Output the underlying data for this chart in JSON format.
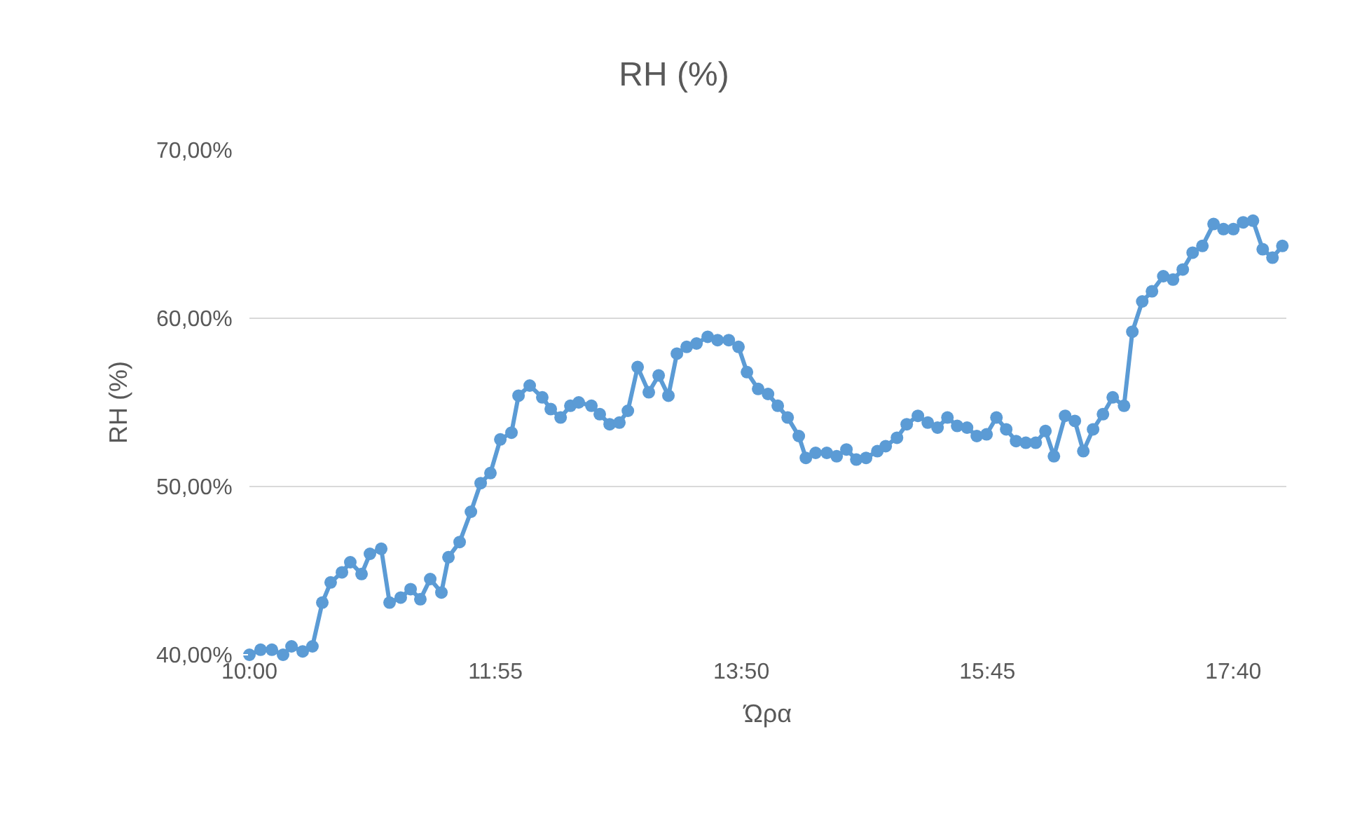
{
  "chart_data": {
    "type": "line",
    "title": "RH (%)",
    "xlabel": "Ώρα",
    "ylabel": "RH (%)",
    "x": [
      10.0,
      10.087,
      10.175,
      10.262,
      10.328,
      10.415,
      10.491,
      10.568,
      10.633,
      10.721,
      10.786,
      10.874,
      10.939,
      11.027,
      11.092,
      11.179,
      11.256,
      11.332,
      11.409,
      11.496,
      11.551,
      11.638,
      11.726,
      11.802,
      11.878,
      11.955,
      12.042,
      12.097,
      12.184,
      12.282,
      12.348,
      12.425,
      12.501,
      12.566,
      12.665,
      12.73,
      12.807,
      12.883,
      12.949,
      13.025,
      13.112,
      13.189,
      13.265,
      13.331,
      13.407,
      13.484,
      13.571,
      13.648,
      13.735,
      13.811,
      13.877,
      13.964,
      14.041,
      14.117,
      14.194,
      14.281,
      14.336,
      14.412,
      14.499,
      14.576,
      14.652,
      14.729,
      14.805,
      14.893,
      14.958,
      15.046,
      15.122,
      15.209,
      15.286,
      15.362,
      15.439,
      15.515,
      15.592,
      15.668,
      15.744,
      15.821,
      15.897,
      15.974,
      16.05,
      16.127,
      16.203,
      16.269,
      16.356,
      16.432,
      16.498,
      16.574,
      16.651,
      16.727,
      16.815,
      16.88,
      16.957,
      17.033,
      17.121,
      17.197,
      17.273,
      17.35,
      17.426,
      17.513,
      17.59,
      17.667,
      17.743,
      17.82,
      17.896,
      17.972,
      18.049
    ],
    "series": [
      {
        "color": "#5b9bd5",
        "values": [
          40.0,
          40.3,
          40.3,
          40.0,
          40.5,
          40.2,
          40.5,
          43.1,
          44.3,
          44.9,
          45.5,
          44.8,
          46.0,
          46.3,
          43.1,
          43.4,
          43.9,
          43.3,
          44.5,
          43.7,
          45.8,
          46.7,
          48.5,
          50.2,
          50.8,
          52.8,
          53.2,
          55.4,
          56.0,
          55.3,
          54.6,
          54.1,
          54.8,
          55.0,
          54.8,
          54.3,
          53.7,
          53.8,
          54.5,
          57.1,
          55.6,
          56.6,
          55.4,
          57.9,
          58.3,
          58.5,
          58.9,
          58.7,
          58.7,
          58.3,
          56.8,
          55.8,
          55.5,
          54.8,
          54.1,
          53.0,
          51.7,
          52.0,
          52.0,
          51.8,
          52.2,
          51.6,
          51.7,
          52.1,
          52.4,
          52.9,
          53.7,
          54.2,
          53.8,
          53.5,
          54.1,
          53.6,
          53.5,
          53.0,
          53.1,
          54.1,
          53.4,
          52.7,
          52.6,
          52.6,
          53.3,
          51.8,
          54.2,
          53.9,
          52.1,
          53.4,
          54.3,
          55.3,
          54.8,
          59.2,
          61.0,
          61.6,
          62.5,
          62.3,
          62.9,
          63.9,
          64.3,
          65.6,
          65.3,
          65.3,
          65.7,
          65.8,
          64.1,
          63.6,
          64.3
        ]
      }
    ],
    "xlim": [
      10,
      18.08
    ],
    "xticks": [
      {
        "value": 10,
        "label": "10:00"
      },
      {
        "value": 11.9167,
        "label": "11:55"
      },
      {
        "value": 13.8333,
        "label": "13:50"
      },
      {
        "value": 15.75,
        "label": "15:45"
      },
      {
        "value": 17.6667,
        "label": "17:40"
      }
    ],
    "ylim": [
      40,
      70
    ],
    "yticks": [
      {
        "value": 40,
        "label": "40,00%"
      },
      {
        "value": 50,
        "label": "50,00%"
      },
      {
        "value": 60,
        "label": "60,00%"
      },
      {
        "value": 70,
        "label": "70,00%"
      }
    ],
    "grid": "y",
    "marker": "circle",
    "line_style": "solid"
  }
}
